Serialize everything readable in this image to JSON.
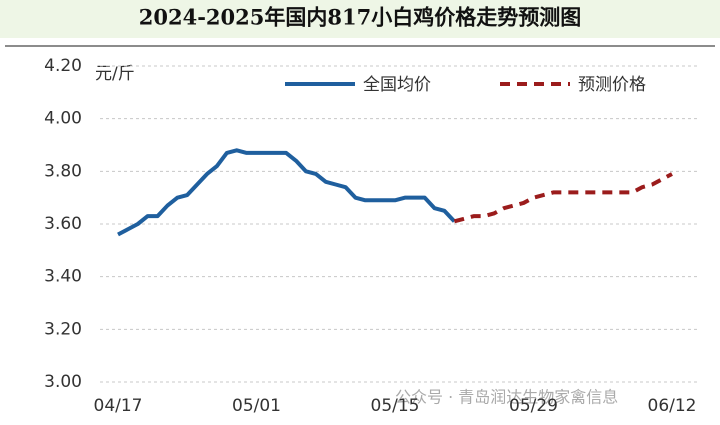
{
  "chart_data": {
    "type": "line",
    "title": "2024-2025年国内817小白鸡价格走势预测图",
    "y_unit": "元/斤",
    "watermark": "公众号 · 青岛润达生物家禽信息",
    "categories": [
      "04/17",
      null,
      null,
      null,
      null,
      null,
      null,
      null,
      null,
      null,
      null,
      null,
      null,
      null,
      "05/01",
      null,
      null,
      null,
      null,
      null,
      null,
      null,
      null,
      null,
      null,
      null,
      null,
      null,
      "05/15",
      null,
      null,
      null,
      null,
      null,
      null,
      null,
      null,
      null,
      null,
      null,
      null,
      null,
      "05/29",
      null,
      null,
      null,
      null,
      null,
      null,
      null,
      null,
      null,
      null,
      null,
      null,
      null,
      "06/12"
    ],
    "series": [
      {
        "name": "全国均价",
        "color": "#1f5f9e",
        "dashed": false,
        "values": [
          3.56,
          3.58,
          3.6,
          3.63,
          3.63,
          3.67,
          3.7,
          3.71,
          3.75,
          3.79,
          3.82,
          3.87,
          3.88,
          3.87,
          3.87,
          3.87,
          3.87,
          3.87,
          3.84,
          3.8,
          3.79,
          3.76,
          3.75,
          3.74,
          3.7,
          3.69,
          3.69,
          3.69,
          3.69,
          3.7,
          3.7,
          3.7,
          3.66,
          3.65,
          3.61,
          null,
          null,
          null,
          null,
          null,
          null,
          null,
          null,
          null,
          null,
          null,
          null,
          null,
          null,
          null,
          null,
          null,
          null,
          null,
          null,
          null,
          null
        ]
      },
      {
        "name": "预测价格",
        "color": "#9b1c1c",
        "dashed": true,
        "values": [
          null,
          null,
          null,
          null,
          null,
          null,
          null,
          null,
          null,
          null,
          null,
          null,
          null,
          null,
          null,
          null,
          null,
          null,
          null,
          null,
          null,
          null,
          null,
          null,
          null,
          null,
          null,
          null,
          null,
          null,
          null,
          null,
          null,
          null,
          3.61,
          3.62,
          3.63,
          3.63,
          3.64,
          3.66,
          3.67,
          3.68,
          3.7,
          3.71,
          3.72,
          3.72,
          3.72,
          3.72,
          3.72,
          3.72,
          3.72,
          3.72,
          3.72,
          3.74,
          3.75,
          3.77,
          3.79
        ]
      }
    ],
    "ylim": [
      3.0,
      4.2
    ],
    "yticks": [
      {
        "value": 3.0,
        "label": "3.00"
      },
      {
        "value": 3.2,
        "label": "3.20"
      },
      {
        "value": 3.4,
        "label": "3.40"
      },
      {
        "value": 3.6,
        "label": "3.60"
      },
      {
        "value": 3.8,
        "label": "3.80"
      },
      {
        "value": 4.0,
        "label": "4.00"
      },
      {
        "value": 4.2,
        "label": "4.20"
      }
    ],
    "grid": true,
    "legend": "top"
  }
}
